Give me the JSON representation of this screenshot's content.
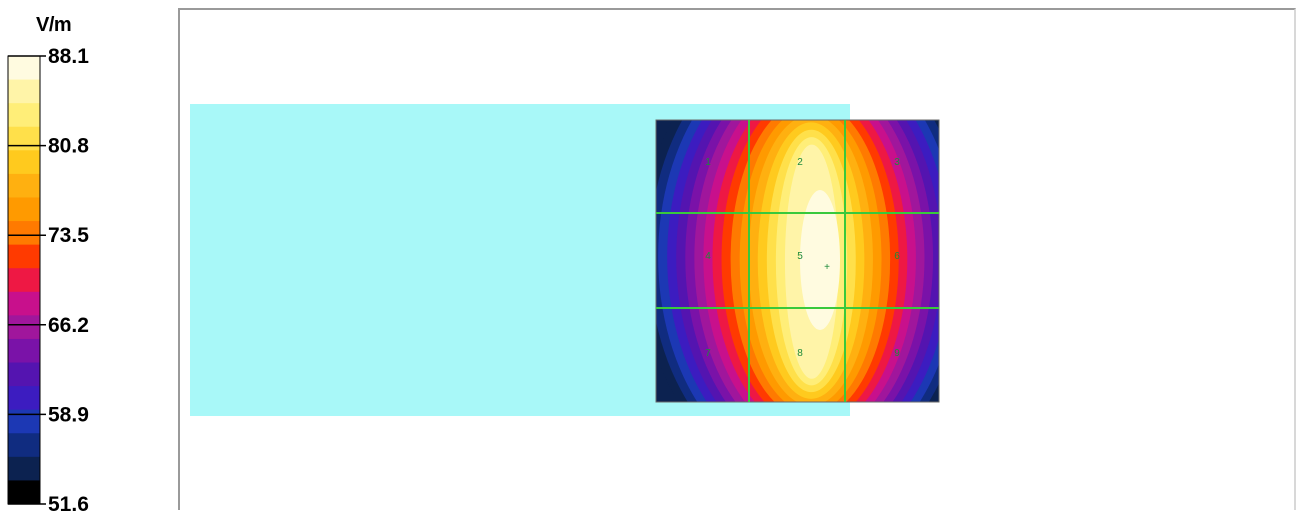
{
  "chart_data": {
    "type": "heatmap",
    "unit": "V/m",
    "colorbar": {
      "ticks": [
        "88.1",
        "80.8",
        "73.5",
        "66.2",
        "58.9",
        "51.6"
      ],
      "range": [
        51.6,
        88.1
      ],
      "colors": [
        "#fffbe0",
        "#fff4a8",
        "#ffee78",
        "#ffe04a",
        "#ffca1e",
        "#ffb010",
        "#ff9a00",
        "#ff7a00",
        "#ff3a00",
        "#ee1844",
        "#c8108c",
        "#a0169c",
        "#7a12a8",
        "#5414b0",
        "#3c1cc0",
        "#1c38b4",
        "#102c80",
        "#0c2250",
        "#000000"
      ]
    },
    "grid": {
      "rows": 3,
      "cols": 3,
      "cell_labels": [
        "1",
        "2",
        "3",
        "4",
        "5",
        "6",
        "7",
        "8",
        "9"
      ]
    },
    "peak_marker": "+"
  },
  "colors": {
    "phantom": "#a8f8f8",
    "grid_lines": "#39c93c",
    "frame": "#9a9a9a"
  }
}
